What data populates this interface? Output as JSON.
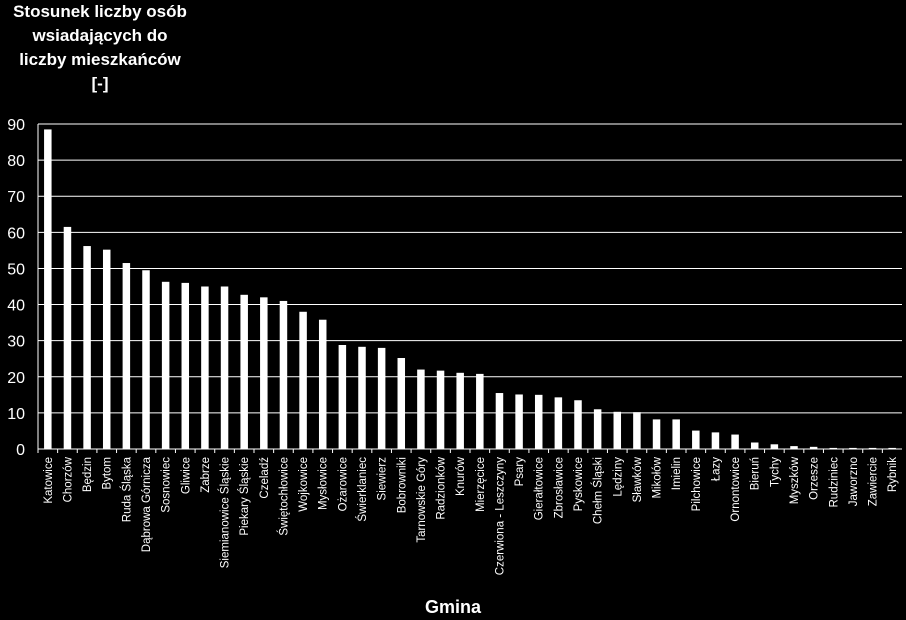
{
  "chart_data": {
    "type": "bar",
    "ylabel_lines": [
      "Stosunek liczby osób",
      "wsiadających do",
      "liczby mieszkańców",
      "[-]"
    ],
    "xlabel": "Gmina",
    "ylim": [
      0,
      90
    ],
    "yticks": [
      0,
      10,
      20,
      30,
      40,
      50,
      60,
      70,
      80,
      90
    ],
    "grid": true,
    "categories": [
      "Katowice",
      "Chorzów",
      "Będzin",
      "Bytom",
      "Ruda Śląska",
      "Dąbrowa Górnicza",
      "Sosnowiec",
      "Gliwice",
      "Zabrze",
      "Siemianowice Śląskie",
      "Piekary Śląskie",
      "Czeladź",
      "Świętochłowice",
      "Wojkowice",
      "Mysłowice",
      "Ożarowice",
      "Świerklaniec",
      "Siewierz",
      "Bobrowniki",
      "Tarnowskie Góry",
      "Radzionków",
      "Knurów",
      "Mierzęcice",
      "Czerwiona - Leszczyny",
      "Psary",
      "Gierałtowice",
      "Zbrosławice",
      "Pyskowice",
      "Chełm Śląski",
      "Lędziny",
      "Sławków",
      "Mikołów",
      "Imielin",
      "Pilchowice",
      "Łazy",
      "Ornontowice",
      "Bieruń",
      "Tychy",
      "Myszków",
      "Orzesze",
      "Rudziniec",
      "Jaworzno",
      "Zawiercie",
      "Rybnik"
    ],
    "values": [
      88.5,
      61.5,
      56.2,
      55.2,
      51.5,
      49.5,
      46.3,
      46.0,
      45.0,
      45.0,
      42.7,
      42.0,
      41.0,
      38.0,
      35.8,
      28.8,
      28.3,
      28.0,
      25.2,
      22.0,
      21.7,
      21.1,
      20.8,
      15.5,
      15.1,
      15.0,
      14.3,
      13.5,
      11.0,
      10.3,
      10.2,
      8.2,
      8.2,
      5.1,
      4.6,
      4.0,
      1.8,
      1.3,
      0.8,
      0.6,
      0.3,
      0.3,
      0.3,
      0.3
    ]
  },
  "colors": {
    "background": "#000000",
    "bar": "#ffffff",
    "grid": "#ffffff",
    "text": "#ffffff"
  }
}
